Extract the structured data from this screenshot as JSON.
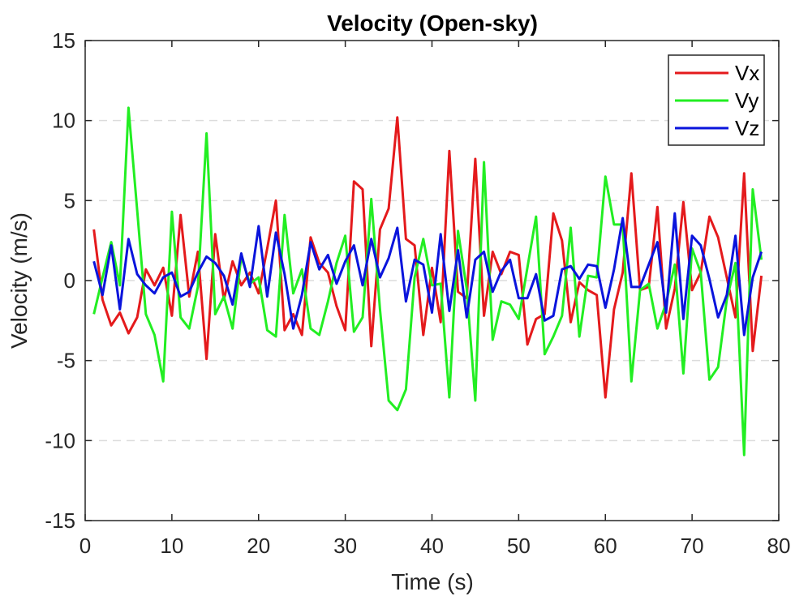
{
  "chart_data": {
    "type": "line",
    "title": "Velocity (Open-sky)",
    "xlabel": "Time (s)",
    "ylabel": "Velocity (m/s)",
    "xlim": [
      0,
      80
    ],
    "ylim": [
      -15,
      15
    ],
    "xticks": [
      0,
      10,
      20,
      30,
      40,
      50,
      60,
      70,
      80
    ],
    "yticks": [
      -15,
      -10,
      -5,
      0,
      5,
      10,
      15
    ],
    "grid": "horizontal dashed",
    "legend_position": "top-right",
    "x": [
      1,
      2,
      3,
      4,
      5,
      6,
      7,
      8,
      9,
      10,
      11,
      12,
      13,
      14,
      15,
      16,
      17,
      18,
      19,
      20,
      21,
      22,
      23,
      24,
      25,
      26,
      27,
      28,
      29,
      30,
      31,
      32,
      33,
      34,
      35,
      36,
      37,
      38,
      39,
      40,
      41,
      42,
      43,
      44,
      45,
      46,
      47,
      48,
      49,
      50,
      51,
      52,
      53,
      54,
      55,
      56,
      57,
      58,
      59,
      60,
      61,
      62,
      63,
      64,
      65,
      66,
      67,
      68,
      69,
      70,
      71,
      72,
      73,
      74,
      75,
      76,
      77,
      78
    ],
    "series": [
      {
        "name": "Vx",
        "color": "#e41a1c",
        "values": [
          3.2,
          -1.2,
          -2.8,
          -2.0,
          -3.3,
          -2.3,
          0.7,
          -0.3,
          0.8,
          -2.2,
          4.1,
          -1.0,
          1.8,
          -4.9,
          2.9,
          -1.2,
          1.2,
          -0.3,
          0.5,
          -0.8,
          2.0,
          5.0,
          -3.1,
          -2.1,
          -3.4,
          2.7,
          1.1,
          0.5,
          -1.6,
          -3.1,
          6.2,
          5.7,
          -4.1,
          3.2,
          4.5,
          10.2,
          2.6,
          2.2,
          -3.4,
          0.8,
          -2.6,
          8.1,
          -0.7,
          -1.1,
          7.6,
          -2.2,
          1.8,
          0.4,
          1.8,
          1.6,
          -4.0,
          -2.4,
          -2.1,
          4.2,
          2.5,
          -2.6,
          -0.1,
          -0.6,
          -0.9,
          -7.3,
          -1.8,
          0.5,
          6.7,
          -0.6,
          -0.4,
          4.6,
          -3.0,
          -0.5,
          4.9,
          -0.6,
          0.5,
          4.0,
          2.7,
          0.2,
          -2.3,
          6.7,
          -4.4,
          0.3
        ]
      },
      {
        "name": "Vy",
        "color": "#22ee22",
        "values": [
          -2.1,
          0.2,
          2.4,
          -0.3,
          10.8,
          4.4,
          -2.1,
          -3.4,
          -6.3,
          4.3,
          -2.3,
          -3.0,
          -0.4,
          9.2,
          -2.1,
          -1.0,
          -3.0,
          1.5,
          -0.2,
          0.2,
          -3.1,
          -3.5,
          4.1,
          -0.8,
          0.7,
          -3.0,
          -3.4,
          -1.3,
          1.1,
          2.8,
          -3.2,
          -2.3,
          5.1,
          -1.8,
          -7.5,
          -8.1,
          -6.8,
          0.2,
          2.6,
          -0.3,
          -0.2,
          -7.3,
          3.1,
          -0.5,
          -7.5,
          7.4,
          -3.7,
          -1.3,
          -1.5,
          -2.4,
          0.8,
          4.0,
          -4.6,
          -3.5,
          -2.2,
          3.3,
          -3.5,
          0.3,
          0.2,
          6.5,
          3.5,
          3.5,
          -6.3,
          -0.6,
          -0.2,
          -3.0,
          -1.4,
          1.0,
          -5.8,
          2.0,
          0.5,
          -6.2,
          -5.4,
          -1.2,
          1.1,
          -10.9,
          5.7,
          1.3
        ]
      },
      {
        "name": "Vz",
        "color": "#0a14dc",
        "values": [
          1.2,
          -0.9,
          2.2,
          -1.8,
          2.6,
          0.4,
          -0.3,
          -0.8,
          0.2,
          0.5,
          -1.0,
          -0.7,
          0.5,
          1.5,
          1.1,
          0.3,
          -1.5,
          1.7,
          -0.4,
          3.4,
          -1.0,
          3.0,
          0.4,
          -3.0,
          -0.9,
          2.4,
          0.7,
          1.6,
          -0.2,
          1.2,
          2.2,
          -0.3,
          2.6,
          0.2,
          1.4,
          3.3,
          -1.3,
          1.3,
          1.0,
          -2.0,
          2.9,
          -1.9,
          1.9,
          -2.3,
          1.3,
          1.8,
          -0.7,
          0.6,
          1.3,
          -1.1,
          -1.1,
          0.4,
          -2.5,
          -2.2,
          0.7,
          0.9,
          0.1,
          1.0,
          0.9,
          -1.7,
          0.7,
          3.9,
          -0.4,
          -0.4,
          1.0,
          2.4,
          -2.0,
          4.2,
          -2.4,
          2.8,
          2.2,
          0.1,
          -2.3,
          -0.9,
          2.8,
          -3.4,
          0.2,
          1.8
        ]
      }
    ]
  }
}
